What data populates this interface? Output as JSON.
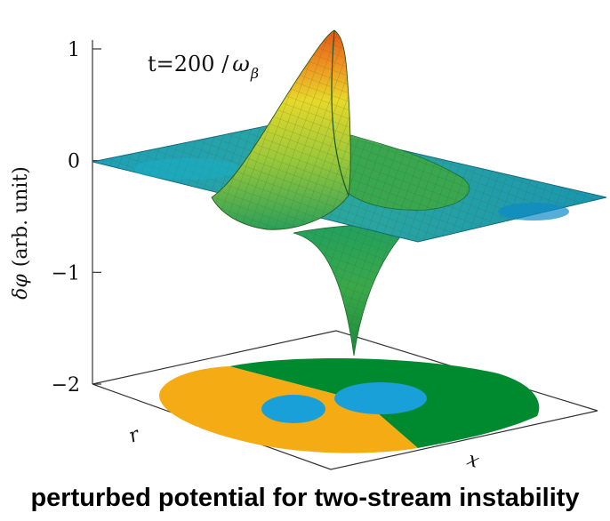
{
  "chart_data": {
    "type": "surface3d",
    "title": "",
    "ylabel_prefix": "δ",
    "ylabel_symbol": "φ",
    "ylabel_suffix": "(arb. unit)",
    "xlabel": "x",
    "depth_label": "r",
    "zlim": [
      -2,
      1
    ],
    "z_ticks": [
      "1",
      "0",
      "−1",
      "−2"
    ],
    "annotation": {
      "prefix": "t=200 /",
      "symbol": "ω",
      "subscript": "β"
    },
    "surface": {
      "description_values": {
        "peak": 1.15,
        "trough": -1.75,
        "baseline": 0
      }
    },
    "floor_colors": {
      "positive_region": "#f5ab14",
      "negative_region": "#008a2f",
      "positive_blob": "#1aa0d8",
      "negative_blob": "#1aa0d8"
    }
  },
  "caption": "perturbed potential for two-stream instability"
}
